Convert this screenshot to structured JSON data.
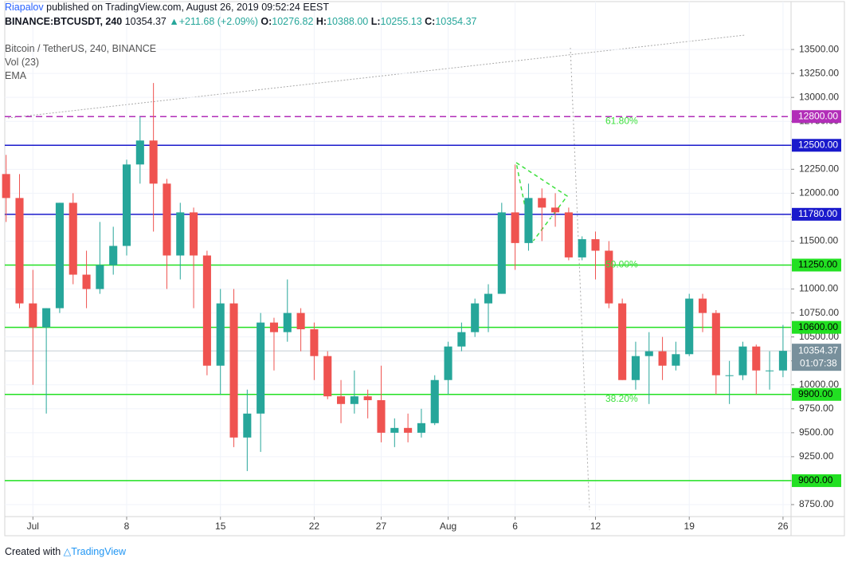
{
  "header": {
    "author": "Riapalov",
    "published": "published on TradingView.com, August 26, 2019 09:52:24 EEST",
    "symbol": "BINANCE:BTCUSDT, 240",
    "last": "10354.37",
    "change": "▲+211.68 (+2.09%)",
    "o_label": "O:",
    "o": "10276.82",
    "h_label": "H:",
    "h": "10388.00",
    "l_label": "L:",
    "l": "10255.13",
    "c_label": "C:",
    "c": "10354.37"
  },
  "legend": {
    "instrument": "Bitcoin / TetherUS, 240, BINANCE",
    "volume": "Vol (23)",
    "ema": "EMA"
  },
  "footer": {
    "created": "Created with",
    "brand": "TradingView"
  },
  "chart_data": {
    "type": "candlestick",
    "up_color": "#26a69a",
    "down_color": "#ef5350",
    "x": [
      -1,
      0,
      1,
      2,
      3,
      4,
      5,
      6,
      7,
      8,
      9,
      10,
      11,
      12,
      13,
      14,
      15,
      16,
      17,
      18,
      19,
      20,
      21,
      22,
      23,
      24,
      25,
      26,
      27,
      28,
      29,
      30,
      31,
      32,
      33,
      34,
      35,
      36,
      37,
      38,
      39,
      40,
      41,
      42,
      43,
      44,
      45,
      46,
      47,
      48,
      49,
      50,
      51,
      52,
      53,
      54,
      55,
      56,
      57
    ],
    "open": [
      12200,
      11950,
      10850,
      10600,
      10800,
      11900,
      11150,
      11000,
      11250,
      11450,
      12300,
      12550,
      12100,
      11350,
      11800,
      11350,
      10200,
      10850,
      9450,
      9700,
      10650,
      10550,
      10750,
      10580,
      10300,
      9880,
      9800,
      9880,
      9840,
      9500,
      9550,
      9500,
      9600,
      10050,
      10400,
      10550,
      10850,
      10950,
      11800,
      11480,
      11950,
      11850,
      11800,
      11330,
      11520,
      11400,
      10850,
      10050,
      10300,
      10350,
      10200,
      10320,
      10900,
      10750,
      10100,
      10100,
      10400,
      10150,
      10150
    ],
    "high": [
      12400,
      12200,
      11200,
      10800,
      11900,
      12000,
      11400,
      11700,
      11650,
      12350,
      12800,
      13150,
      12150,
      11900,
      11850,
      11400,
      11000,
      11000,
      9950,
      10750,
      10700,
      11100,
      10800,
      10650,
      10350,
      10050,
      10150,
      9950,
      10200,
      9650,
      9700,
      9750,
      10100,
      10450,
      10650,
      10900,
      11050,
      11900,
      12300,
      12100,
      12050,
      12000,
      11850,
      11550,
      11600,
      11500,
      10900,
      10450,
      10550,
      10500,
      10450,
      10950,
      10950,
      10780,
      10250,
      10450,
      10420,
      10350,
      10625
    ],
    "low": [
      11700,
      10800,
      10000,
      9700,
      10750,
      11050,
      10800,
      10950,
      11150,
      11350,
      12100,
      11600,
      11000,
      11100,
      10800,
      10100,
      9900,
      9350,
      9100,
      9300,
      10150,
      10450,
      10350,
      10050,
      9850,
      9600,
      9700,
      9650,
      9400,
      9350,
      9400,
      9450,
      9580,
      9900,
      10350,
      10500,
      10550,
      10950,
      11200,
      11400,
      11500,
      11650,
      11300,
      11300,
      11100,
      10800,
      10050,
      9950,
      9800,
      10050,
      10150,
      10300,
      10550,
      9900,
      9800,
      10050,
      9900,
      9950,
      10080
    ],
    "close": [
      11950,
      10850,
      10600,
      10800,
      11900,
      11150,
      11000,
      11250,
      11450,
      12300,
      12550,
      12100,
      11350,
      11800,
      11350,
      10200,
      10850,
      9450,
      9700,
      10650,
      10550,
      10750,
      10580,
      10300,
      9880,
      9800,
      9880,
      9840,
      9500,
      9550,
      9500,
      9600,
      10050,
      10400,
      10550,
      10850,
      10950,
      11800,
      11480,
      11950,
      11850,
      11800,
      11330,
      11520,
      11400,
      10850,
      10050,
      10300,
      10350,
      10200,
      10320,
      10900,
      10750,
      10100,
      10100,
      10400,
      10150,
      10150,
      10354.37
    ],
    "xlim": [
      -1.1,
      57.6
    ],
    "ylim": [
      8625,
      14000
    ],
    "xticks": [
      {
        "value": 1,
        "label": "Jul"
      },
      8,
      15,
      22,
      27,
      {
        "value": 32,
        "label": "Aug"
      },
      {
        "value": 37,
        "label": "6"
      },
      {
        "value": 43,
        "label": "12"
      },
      {
        "value": 50,
        "label": "19"
      },
      {
        "value": 57,
        "label": "26"
      }
    ],
    "yticks": [
      {
        "value": 8750,
        "label": "8750.00"
      },
      {
        "value": 9000,
        "label": "9000.00"
      },
      {
        "value": 9250,
        "label": "9250.00"
      },
      {
        "value": 9500,
        "label": "9500.00"
      },
      {
        "value": 9750,
        "label": "9750.00"
      },
      {
        "value": 10000,
        "label": "10000.00"
      },
      {
        "value": 10250,
        "label": "10250.00"
      },
      {
        "value": 10500,
        "label": "10500.00"
      },
      {
        "value": 10750,
        "label": "10750.00"
      },
      {
        "value": 11000,
        "label": "11000.00"
      },
      {
        "value": 11250,
        "label": "11250.00"
      },
      {
        "value": 11500,
        "label": "11500.00"
      },
      {
        "value": 11750,
        "label": "11750.00"
      },
      {
        "value": 12000,
        "label": "12000.00"
      },
      {
        "value": 12250,
        "label": "12250.00"
      },
      {
        "value": 12500,
        "label": "12500.00"
      },
      {
        "value": 12750,
        "label": "12750.00"
      },
      {
        "value": 13000,
        "label": "13000.00"
      },
      {
        "value": 13250,
        "label": "13250.00"
      },
      {
        "value": 13500,
        "label": "13500.00"
      }
    ],
    "levels": [
      {
        "value": 12800,
        "label": "12800.00",
        "color": "#b22eb8",
        "style": "dashed"
      },
      {
        "value": 12500,
        "label": "12500.00",
        "color": "#1a1acc",
        "style": "solid"
      },
      {
        "value": 11780,
        "label": "11780.00",
        "color": "#1a1acc",
        "style": "solid"
      },
      {
        "value": 11250,
        "label": "11250.00",
        "color": "#22e022",
        "style": "solid"
      },
      {
        "value": 10600,
        "label": "10600.00",
        "color": "#22e022",
        "style": "solid"
      },
      {
        "value": 9900,
        "label": "9900.00",
        "color": "#22e022",
        "style": "solid"
      },
      {
        "value": 9000,
        "label": "9000.00",
        "color": "#22e022",
        "style": "solid"
      }
    ],
    "fib_labels": [
      {
        "value": 12800,
        "label": "61.80%"
      },
      {
        "value": 11300,
        "label": "50.00%"
      },
      {
        "value": 9900,
        "label": "38.20%"
      }
    ],
    "current": {
      "value": 10354.37,
      "label": "10354.37",
      "countdown": "01:07:38",
      "color": "#78909c"
    },
    "grid": true
  }
}
